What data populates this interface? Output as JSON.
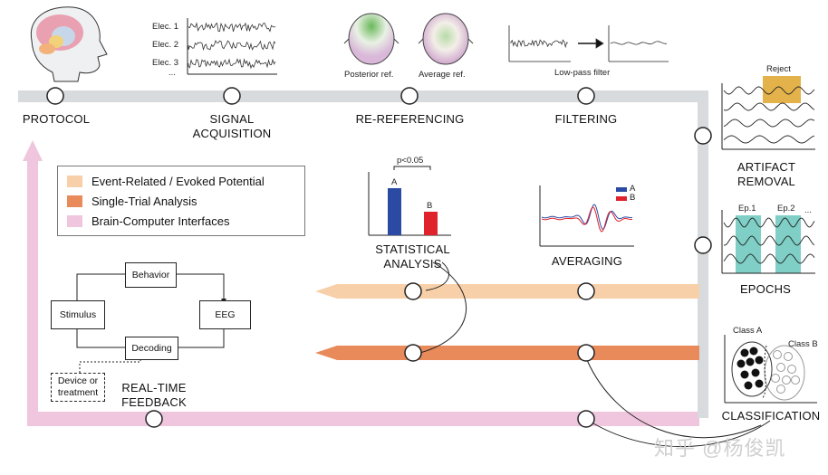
{
  "stages": {
    "protocol": "PROTOCOL",
    "signal_acquisition": [
      "SIGNAL",
      "ACQUISITION"
    ],
    "re_referencing": "RE-REFERENCING",
    "filtering": "FILTERING",
    "artifact_removal": [
      "ARTIFACT",
      "REMOVAL"
    ],
    "epochs": "EPOCHS",
    "classification": "CLASSIFICATION",
    "statistical_analysis": [
      "STATISTICAL",
      "ANALYSIS"
    ],
    "averaging": "AVERAGING",
    "real_time_feedback": [
      "REAL-TIME",
      "FEEDBACK"
    ]
  },
  "electrodes": [
    "Elec. 1",
    "Elec. 2",
    "Elec. 3",
    "..."
  ],
  "reference_labels": {
    "posterior": "Posterior ref.",
    "average": "Average ref."
  },
  "filter_label": "Low-pass filter",
  "artifact_label": "Reject",
  "epoch_labels": [
    "Ep.1",
    "Ep.2",
    "..."
  ],
  "class_labels": {
    "a": "Class A",
    "b": "Class B"
  },
  "stats": {
    "p_value": "p<0.05",
    "bar_a": "A",
    "bar_b": "B"
  },
  "averaging_legend": [
    "A",
    "B"
  ],
  "legend": [
    {
      "label": "Event-Related / Evoked Potential",
      "color": "#f7cfa8"
    },
    {
      "label": "Single-Trial Analysis",
      "color": "#e88a5a"
    },
    {
      "label": "Brain-Computer Interfaces",
      "color": "#efc6dd"
    }
  ],
  "flow": {
    "behavior": "Behavior",
    "eeg": "EEG",
    "stimulus": "Stimulus",
    "decoding": "Decoding",
    "device": [
      "Device or",
      "treatment"
    ]
  },
  "colors": {
    "track_gray": "#d7dbde",
    "erp_peach": "#f7cfa8",
    "single_trial_orange": "#e88a5a",
    "bci_pink": "#efc6dd",
    "bar_blue": "#2b4aa3",
    "bar_red": "#e0222c",
    "epoch_teal": "#7fcfc6",
    "reject_gold": "#e3b24a"
  },
  "watermark": "知乎 @杨俊凯"
}
